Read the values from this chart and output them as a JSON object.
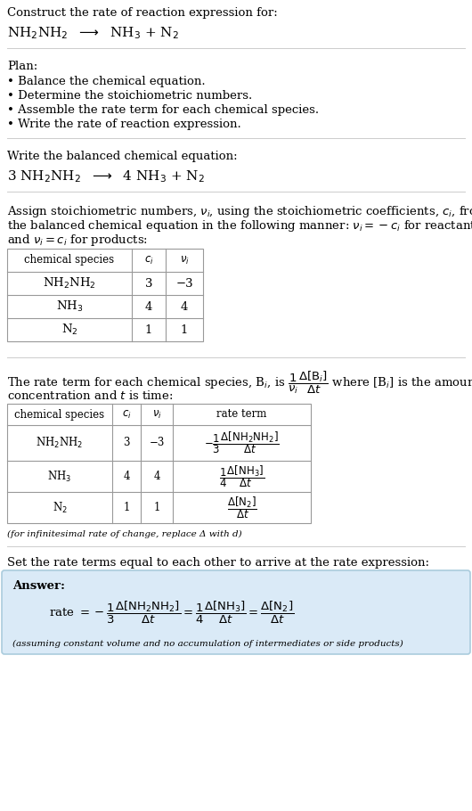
{
  "bg_color": "#ffffff",
  "text_color": "#000000",
  "section1_title": "Construct the rate of reaction expression for:",
  "section2_title": "Plan:",
  "section2_bullets": [
    "• Balance the chemical equation.",
    "• Determine the stoichiometric numbers.",
    "• Assemble the rate term for each chemical species.",
    "• Write the rate of reaction expression."
  ],
  "section3_title": "Write the balanced chemical equation:",
  "table1_headers": [
    "chemical species",
    "$c_i$",
    "$\\nu_i$"
  ],
  "table1_rows": [
    [
      "NH$_2$NH$_2$",
      "3",
      "−3"
    ],
    [
      "NH$_3$",
      "4",
      "4"
    ],
    [
      "N$_2$",
      "1",
      "1"
    ]
  ],
  "table2_headers": [
    "chemical species",
    "$c_i$",
    "$\\nu_i$",
    "rate term"
  ],
  "table2_rows": [
    [
      "NH$_2$NH$_2$",
      "3",
      "−3",
      "$-\\dfrac{1}{3}\\dfrac{\\Delta[\\mathrm{NH_2NH_2}]}{\\Delta t}$"
    ],
    [
      "NH$_3$",
      "4",
      "4",
      "$\\dfrac{1}{4}\\dfrac{\\Delta[\\mathrm{NH_3}]}{\\Delta t}$"
    ],
    [
      "N$_2$",
      "1",
      "1",
      "$\\dfrac{\\Delta[\\mathrm{N_2}]}{\\Delta t}$"
    ]
  ],
  "section5_footnote": "(for infinitesimal rate of change, replace Δ with d)",
  "section6_title": "Set the rate terms equal to each other to arrive at the rate expression:",
  "answer_label": "Answer:",
  "answer_footnote": "(assuming constant volume and no accumulation of intermediates or side products)",
  "answer_bg": "#daeaf7",
  "answer_border": "#aaccdd",
  "divider_color": "#cccccc"
}
